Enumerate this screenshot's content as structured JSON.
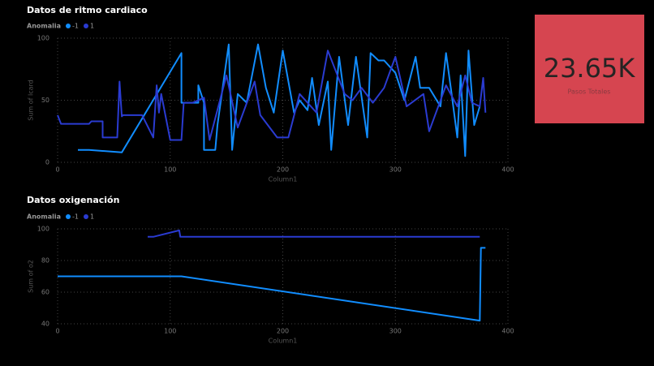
{
  "chart_data": [
    {
      "type": "line",
      "title": "Datos de ritmo cardiaco",
      "legend_title": "Anomalia",
      "x_label": "Column1",
      "y_label": "Sum of lcard",
      "xlim": [
        0,
        400
      ],
      "xticks": [
        0,
        100,
        200,
        300,
        400
      ],
      "ylim": [
        0,
        100
      ],
      "yticks": [
        0,
        50,
        100
      ],
      "grid": true,
      "series": [
        {
          "name": "-1",
          "color": "#118dff",
          "x": [
            18,
            28,
            57,
            110,
            110,
            125,
            125,
            130,
            130,
            140,
            142,
            152,
            155,
            160,
            168,
            178,
            185,
            192,
            200,
            210,
            215,
            222,
            226,
            232,
            240,
            243,
            250,
            258,
            265,
            275,
            278,
            285,
            290,
            300,
            308,
            318,
            322,
            330,
            340,
            345,
            350,
            355,
            358,
            362,
            365,
            370,
            375
          ],
          "values": [
            10,
            10,
            8,
            88,
            48,
            48,
            62,
            48,
            10,
            10,
            30,
            95,
            10,
            55,
            48,
            95,
            60,
            40,
            90,
            40,
            50,
            42,
            68,
            30,
            65,
            10,
            85,
            30,
            85,
            20,
            88,
            82,
            82,
            72,
            50,
            85,
            60,
            60,
            45,
            88,
            55,
            20,
            70,
            5,
            90,
            30,
            45
          ]
        },
        {
          "name": "1",
          "color": "#2a3bd1",
          "x": [
            0,
            3,
            28,
            30,
            40,
            40,
            53,
            55,
            57,
            58,
            75,
            85,
            88,
            90,
            92,
            100,
            110,
            112,
            120,
            130,
            135,
            150,
            160,
            175,
            180,
            195,
            205,
            215,
            230,
            240,
            255,
            262,
            270,
            280,
            290,
            300,
            310,
            325,
            330,
            345,
            355,
            362,
            368,
            375,
            378,
            380
          ],
          "values": [
            38,
            31,
            31,
            33,
            33,
            20,
            20,
            65,
            37,
            38,
            38,
            20,
            62,
            40,
            55,
            18,
            18,
            48,
            48,
            52,
            18,
            70,
            28,
            65,
            38,
            20,
            20,
            55,
            40,
            90,
            55,
            50,
            60,
            48,
            60,
            85,
            45,
            55,
            25,
            62,
            45,
            70,
            48,
            45,
            68,
            40
          ]
        }
      ]
    },
    {
      "type": "line",
      "title": "Datos oxigenación",
      "legend_title": "Anomalia",
      "x_label": "Column1",
      "y_label": "Sum of o2",
      "xlim": [
        0,
        400
      ],
      "xticks": [
        0,
        100,
        200,
        300,
        400
      ],
      "ylim": [
        40,
        100
      ],
      "yticks": [
        40,
        60,
        80,
        100
      ],
      "grid": true,
      "series": [
        {
          "name": "-1",
          "color": "#118dff",
          "x": [
            0,
            110,
            375,
            376,
            380
          ],
          "values": [
            70,
            70,
            42,
            88,
            88
          ]
        },
        {
          "name": "1",
          "color": "#2a3bd1",
          "x": [
            80,
            85,
            108,
            109,
            375
          ],
          "values": [
            95,
            95,
            99,
            95,
            95
          ]
        }
      ]
    }
  ],
  "card": {
    "value": 23650,
    "value_label": "23.65K",
    "label": "Pasos Totales",
    "color": "#d64550"
  }
}
